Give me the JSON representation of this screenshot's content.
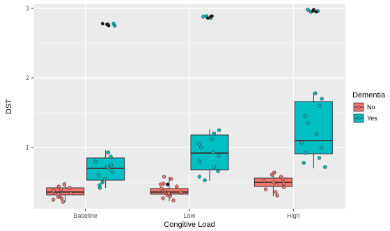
{
  "chart_data": {
    "type": "box",
    "title": "",
    "xlabel": "Congitive Load",
    "ylabel": "DST",
    "categories": [
      "Baseline",
      "Low",
      "High"
    ],
    "ylim": [
      0.12,
      3.06
    ],
    "yticks": [
      1,
      2,
      3
    ],
    "yticklabels": [
      "1",
      "2",
      "3"
    ],
    "grid": true,
    "legend": {
      "title": "Dementia",
      "position": "right",
      "entries": [
        {
          "label": "No",
          "color": "#F8766D"
        },
        {
          "label": "Yes",
          "color": "#00BFC4"
        }
      ]
    },
    "series": [
      {
        "name": "No",
        "color": "#F8766D",
        "boxes": [
          {
            "category": "Baseline",
            "q1": 0.32,
            "median": 0.36,
            "q3": 0.42,
            "whisker_low": 0.22,
            "whisker_high": 0.51,
            "points": [
              0.22,
              0.25,
              0.27,
              0.29,
              0.31,
              0.33,
              0.34,
              0.36,
              0.38,
              0.4,
              0.42,
              0.44,
              0.47
            ]
          },
          {
            "category": "Low",
            "q1": 0.33,
            "median": 0.36,
            "q3": 0.41,
            "whisker_low": 0.23,
            "whisker_high": 0.58,
            "points": [
              0.24,
              0.27,
              0.3,
              0.32,
              0.34,
              0.36,
              0.37,
              0.39,
              0.41,
              0.44,
              0.48,
              0.55,
              0.58
            ]
          },
          {
            "category": "High",
            "q1": 0.44,
            "median": 0.5,
            "q3": 0.56,
            "whisker_low": 0.3,
            "whisker_high": 0.66,
            "points": [
              0.31,
              0.36,
              0.4,
              0.43,
              0.46,
              0.48,
              0.5,
              0.52,
              0.55,
              0.58,
              0.61,
              0.64
            ]
          }
        ],
        "outliers": [
          {
            "category": "Low",
            "value": 0.47
          }
        ]
      },
      {
        "name": "Yes",
        "color": "#00BFC4",
        "boxes": [
          {
            "category": "Baseline",
            "q1": 0.53,
            "median": 0.7,
            "q3": 0.85,
            "whisker_low": 0.42,
            "whisker_high": 0.96,
            "points": [
              0.42,
              0.46,
              0.5,
              0.55,
              0.6,
              0.65,
              0.7,
              0.72,
              0.75,
              0.8,
              0.87,
              0.93
            ]
          },
          {
            "category": "Low",
            "q1": 0.68,
            "median": 0.92,
            "q3": 1.18,
            "whisker_low": 0.52,
            "whisker_high": 1.26,
            "points": [
              0.53,
              0.58,
              0.66,
              0.72,
              0.8,
              0.88,
              0.93,
              1.0,
              1.05,
              1.12,
              1.2,
              1.25
            ]
          },
          {
            "category": "High",
            "q1": 0.91,
            "median": 1.1,
            "q3": 1.66,
            "whisker_low": 0.7,
            "whisker_high": 1.79,
            "points": [
              0.72,
              0.78,
              0.85,
              0.92,
              1.0,
              1.07,
              1.2,
              1.35,
              1.45,
              1.6,
              1.7,
              1.78
            ]
          }
        ],
        "outliers": [
          {
            "category": "Baseline",
            "value": 2.75
          },
          {
            "category": "Baseline",
            "value": 2.77
          },
          {
            "category": "Baseline",
            "value": 2.78
          },
          {
            "category": "Low",
            "value": 2.86
          },
          {
            "category": "Low",
            "value": 2.88
          },
          {
            "category": "Low",
            "value": 2.89
          },
          {
            "category": "High",
            "value": 2.95
          },
          {
            "category": "High",
            "value": 2.96
          },
          {
            "category": "High",
            "value": 2.98
          }
        ]
      }
    ]
  }
}
